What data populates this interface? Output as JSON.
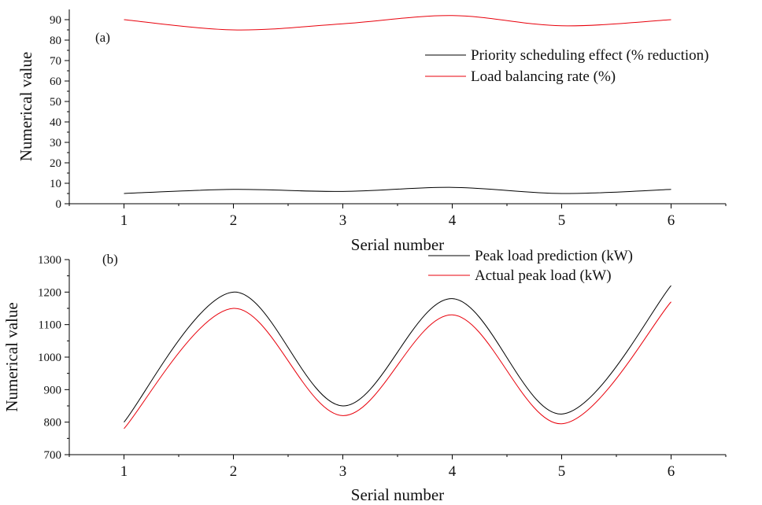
{
  "chart_data": [
    {
      "type": "line",
      "panel_label": "(a)",
      "xlabel": "Serial number",
      "ylabel": "Numerical value",
      "x": [
        1,
        2,
        3,
        4,
        5,
        6
      ],
      "xlim": [
        0.5,
        6.5
      ],
      "ylim": [
        0,
        95
      ],
      "yticks": [
        0,
        10,
        20,
        30,
        40,
        50,
        60,
        70,
        80,
        90
      ],
      "grid": false,
      "legend_position": "right",
      "series": [
        {
          "name": "Priority scheduling effect (% reduction)",
          "color": "#000000",
          "values": [
            5,
            7,
            6,
            8,
            5,
            7
          ]
        },
        {
          "name": "Load balancing rate (%)",
          "color": "#e8000b",
          "values": [
            90,
            85,
            88,
            92,
            87,
            90
          ]
        }
      ]
    },
    {
      "type": "line",
      "panel_label": "(b)",
      "xlabel": "Serial number",
      "ylabel": "Numerical value",
      "x": [
        1,
        2,
        3,
        4,
        5,
        6
      ],
      "xlim": [
        0.5,
        6.5
      ],
      "ylim": [
        700,
        1300
      ],
      "yticks": [
        700,
        800,
        900,
        1000,
        1100,
        1200,
        1300
      ],
      "grid": false,
      "legend_position": "top-right",
      "series": [
        {
          "name": "Peak load prediction (kW)",
          "color": "#000000",
          "values": [
            800,
            1200,
            850,
            1180,
            825,
            1220
          ]
        },
        {
          "name": "Actual peak load (kW)",
          "color": "#e8000b",
          "values": [
            780,
            1150,
            820,
            1130,
            795,
            1170
          ]
        }
      ]
    }
  ]
}
